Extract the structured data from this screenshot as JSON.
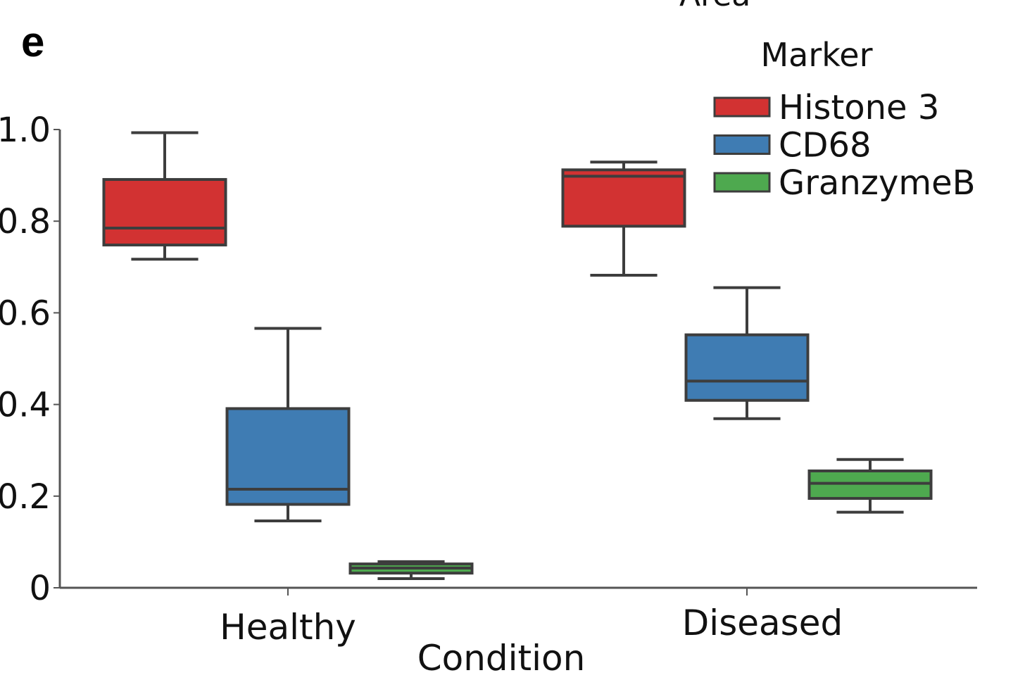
{
  "panel_label": "e",
  "chart_data": {
    "type": "box",
    "title": "",
    "partial_top_text": "Area",
    "xlabel": "Condition",
    "ylabel": "",
    "ylim": [
      0,
      1.0
    ],
    "y_ticks": [
      0,
      0.2,
      0.4,
      0.6,
      0.8,
      1.0
    ],
    "y_tick_labels": [
      "0",
      "0.2",
      "0.4",
      "0.6",
      "0.8",
      "1.0"
    ],
    "categories": [
      "Healthy",
      "Diseased"
    ],
    "legend": {
      "title": "Marker",
      "position": "top-right"
    },
    "series": [
      {
        "name": "Histone 3",
        "color": "#d23232",
        "boxes": [
          {
            "category": "Healthy",
            "whisker_low": 0.717,
            "q1": 0.748,
            "median": 0.785,
            "q3": 0.891,
            "whisker_high": 0.993
          },
          {
            "category": "Diseased",
            "whisker_low": 0.682,
            "q1": 0.789,
            "median": 0.898,
            "q3": 0.912,
            "whisker_high": 0.929
          }
        ]
      },
      {
        "name": "CD68",
        "color": "#3f7cb3",
        "boxes": [
          {
            "category": "Healthy",
            "whisker_low": 0.146,
            "q1": 0.182,
            "median": 0.215,
            "q3": 0.391,
            "whisker_high": 0.566
          },
          {
            "category": "Diseased",
            "whisker_low": 0.369,
            "q1": 0.409,
            "median": 0.451,
            "q3": 0.552,
            "whisker_high": 0.655
          }
        ]
      },
      {
        "name": "GranzymeB",
        "color": "#4ea94f",
        "boxes": [
          {
            "category": "Healthy",
            "whisker_low": 0.02,
            "q1": 0.032,
            "median": 0.043,
            "q3": 0.052,
            "whisker_high": 0.057
          },
          {
            "category": "Diseased",
            "whisker_low": 0.165,
            "q1": 0.195,
            "median": 0.228,
            "q3": 0.255,
            "whisker_high": 0.28
          }
        ]
      }
    ],
    "outline_color": "#3d3d3d",
    "grid": false
  }
}
